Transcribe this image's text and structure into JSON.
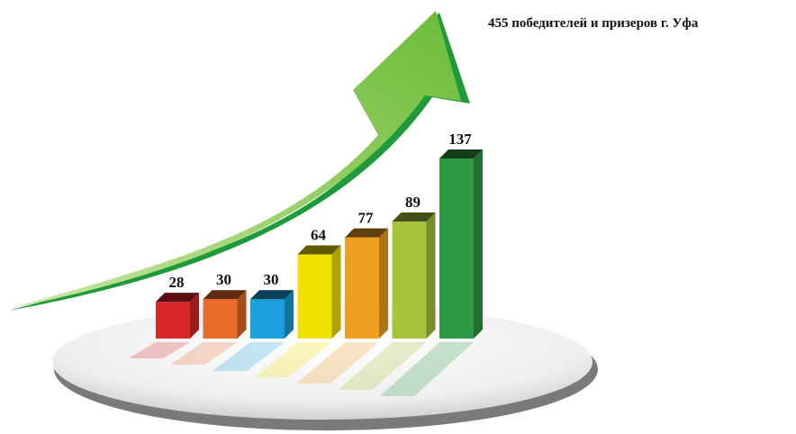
{
  "chart_data": {
    "type": "bar3d",
    "title": "455 победителей и призеров г. Уфа",
    "values": [
      28,
      30,
      30,
      64,
      77,
      89,
      137
    ],
    "colors": [
      "#d9262a",
      "#ea6a2a",
      "#1aa0dc",
      "#f2e100",
      "#f0a020",
      "#a8c23c",
      "#2e9a45"
    ]
  }
}
